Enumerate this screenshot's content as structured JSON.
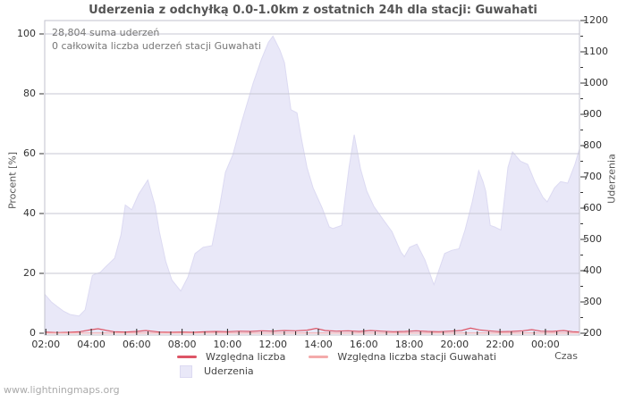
{
  "watermark": "www.lightningmaps.org",
  "chart_data": {
    "type": "area",
    "title": "Uderzenia z odchyłką 0.0-1.0km z ostatnich 24h dla stacji: Guwahati",
    "xlabel": "Czas",
    "ylabel_left": "Procent  [%]",
    "ylabel_right": "Uderzenia",
    "annotations": [
      "28,804 suma uderzeń",
      "0 całkowita liczba uderzeń stacji Guwahati"
    ],
    "legend_position": "bottom-center",
    "grid": "horizontal",
    "x_axis": {
      "start_hour": 1.95,
      "end_hour": 25.5,
      "minor_step_hours": 0.5,
      "major_ticks": [
        {
          "hour": 2,
          "label": "02:00"
        },
        {
          "hour": 4,
          "label": "04:00"
        },
        {
          "hour": 6,
          "label": "06:00"
        },
        {
          "hour": 8,
          "label": "08:00"
        },
        {
          "hour": 10,
          "label": "10:00"
        },
        {
          "hour": 12,
          "label": "12:00"
        },
        {
          "hour": 14,
          "label": "14:00"
        },
        {
          "hour": 16,
          "label": "16:00"
        },
        {
          "hour": 18,
          "label": "18:00"
        },
        {
          "hour": 20,
          "label": "20:00"
        },
        {
          "hour": 22,
          "label": "22:00"
        },
        {
          "hour": 24,
          "label": "00:00"
        }
      ]
    },
    "left_axis": {
      "label": "Procent  [%]",
      "ticks": [
        0,
        20,
        40,
        60,
        80,
        100
      ],
      "range": [
        0,
        100
      ]
    },
    "right_axis": {
      "label": "Uderzenia",
      "ticks": [
        200,
        300,
        400,
        500,
        600,
        700,
        800,
        900,
        1000,
        1100,
        1200
      ],
      "minor_step": 50,
      "range": [
        200,
        1200
      ]
    },
    "series": [
      {
        "name": "Uderzenia",
        "type": "area",
        "axis": "right",
        "color": "#e9e8f8",
        "edge_color": "#dcdaf2",
        "points": [
          [
            1.95,
            325
          ],
          [
            2.24,
            300
          ],
          [
            2.51,
            285
          ],
          [
            2.79,
            270
          ],
          [
            3.06,
            260
          ],
          [
            3.46,
            255
          ],
          [
            3.73,
            275
          ],
          [
            4.05,
            385
          ],
          [
            4.2,
            390
          ],
          [
            4.4,
            395
          ],
          [
            4.6,
            410
          ],
          [
            5.03,
            440
          ],
          [
            5.31,
            515
          ],
          [
            5.5,
            610
          ],
          [
            5.78,
            595
          ],
          [
            6.09,
            645
          ],
          [
            6.49,
            690
          ],
          [
            6.8,
            610
          ],
          [
            7.0,
            525
          ],
          [
            7.28,
            430
          ],
          [
            7.55,
            370
          ],
          [
            7.94,
            335
          ],
          [
            8.26,
            380
          ],
          [
            8.57,
            455
          ],
          [
            8.93,
            475
          ],
          [
            9.32,
            480
          ],
          [
            9.64,
            600
          ],
          [
            9.91,
            715
          ],
          [
            10.23,
            770
          ],
          [
            10.62,
            875
          ],
          [
            11.13,
            1000
          ],
          [
            11.49,
            1075
          ],
          [
            11.8,
            1130
          ],
          [
            12.0,
            1150
          ],
          [
            12.31,
            1105
          ],
          [
            12.51,
            1065
          ],
          [
            12.79,
            915
          ],
          [
            13.06,
            905
          ],
          [
            13.26,
            820
          ],
          [
            13.5,
            730
          ],
          [
            13.77,
            665
          ],
          [
            14.17,
            600
          ],
          [
            14.48,
            540
          ],
          [
            14.64,
            535
          ],
          [
            15.03,
            545
          ],
          [
            15.35,
            730
          ],
          [
            15.58,
            835
          ],
          [
            15.86,
            725
          ],
          [
            16.13,
            655
          ],
          [
            16.45,
            605
          ],
          [
            16.84,
            565
          ],
          [
            17.24,
            525
          ],
          [
            17.63,
            460
          ],
          [
            17.79,
            445
          ],
          [
            18.02,
            475
          ],
          [
            18.34,
            485
          ],
          [
            18.69,
            435
          ],
          [
            19.09,
            355
          ],
          [
            19.56,
            455
          ],
          [
            19.87,
            465
          ],
          [
            20.19,
            470
          ],
          [
            20.46,
            530
          ],
          [
            20.78,
            620
          ],
          [
            21.06,
            720
          ],
          [
            21.25,
            685
          ],
          [
            21.37,
            655
          ],
          [
            21.57,
            545
          ],
          [
            21.76,
            540
          ],
          [
            22.04,
            530
          ],
          [
            22.35,
            730
          ],
          [
            22.55,
            780
          ],
          [
            22.9,
            750
          ],
          [
            23.22,
            740
          ],
          [
            23.53,
            685
          ],
          [
            23.89,
            635
          ],
          [
            24.08,
            620
          ],
          [
            24.4,
            665
          ],
          [
            24.67,
            685
          ],
          [
            24.98,
            680
          ],
          [
            25.3,
            740
          ],
          [
            25.5,
            790
          ]
        ]
      },
      {
        "name": "Względna liczba",
        "type": "line",
        "axis": "left",
        "color": "#dd5566",
        "points": [
          [
            1.95,
            0.4
          ],
          [
            2.5,
            0.2
          ],
          [
            3.0,
            0.3
          ],
          [
            3.5,
            0.5
          ],
          [
            4.0,
            1.2
          ],
          [
            4.3,
            1.5
          ],
          [
            4.7,
            0.9
          ],
          [
            5.0,
            0.5
          ],
          [
            5.5,
            0.4
          ],
          [
            6.0,
            0.6
          ],
          [
            6.4,
            0.9
          ],
          [
            7.0,
            0.4
          ],
          [
            7.5,
            0.3
          ],
          [
            8.0,
            0.4
          ],
          [
            8.5,
            0.3
          ],
          [
            9.0,
            0.5
          ],
          [
            9.5,
            0.6
          ],
          [
            10.0,
            0.5
          ],
          [
            10.5,
            0.7
          ],
          [
            11.0,
            0.6
          ],
          [
            11.5,
            0.8
          ],
          [
            12.0,
            0.7
          ],
          [
            12.5,
            0.9
          ],
          [
            13.0,
            0.8
          ],
          [
            13.5,
            1.0
          ],
          [
            13.9,
            1.6
          ],
          [
            14.3,
            0.9
          ],
          [
            14.8,
            0.7
          ],
          [
            15.3,
            0.8
          ],
          [
            15.8,
            0.6
          ],
          [
            16.3,
            0.9
          ],
          [
            16.8,
            0.7
          ],
          [
            17.3,
            0.5
          ],
          [
            17.8,
            0.6
          ],
          [
            18.3,
            0.8
          ],
          [
            18.8,
            0.6
          ],
          [
            19.3,
            0.5
          ],
          [
            19.8,
            0.7
          ],
          [
            20.3,
            0.9
          ],
          [
            20.7,
            1.7
          ],
          [
            21.1,
            1.1
          ],
          [
            21.5,
            0.8
          ],
          [
            22.0,
            0.5
          ],
          [
            22.5,
            0.6
          ],
          [
            23.0,
            0.8
          ],
          [
            23.4,
            1.2
          ],
          [
            23.8,
            0.7
          ],
          [
            24.3,
            0.6
          ],
          [
            24.8,
            0.9
          ],
          [
            25.2,
            0.5
          ],
          [
            25.5,
            0.4
          ]
        ]
      },
      {
        "name": "Względna liczba stacji Guwahati",
        "type": "line",
        "axis": "left",
        "color": "#f4aaaa",
        "points": [
          [
            1.95,
            0.05
          ],
          [
            25.5,
            0.05
          ]
        ]
      }
    ],
    "colors": {
      "grid": "#c7c7d3",
      "border": "#c2c2cc",
      "tick": "#222222",
      "text": "#444444"
    }
  }
}
